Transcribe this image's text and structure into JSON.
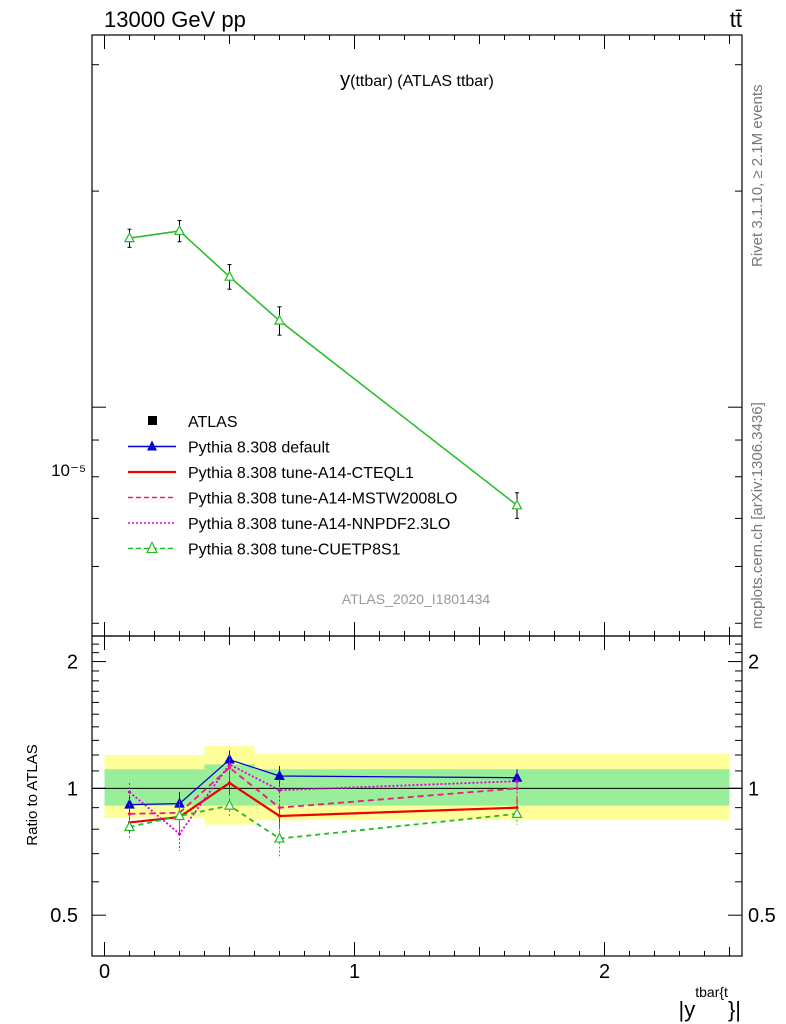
{
  "header": {
    "left": "13000 GeV pp",
    "right": "tt̄"
  },
  "side_text": {
    "rivet": "Rivet 3.1.10, ≥ 2.1M events",
    "mcplots": "mcplots.cern.ch [arXiv:1306.3436]"
  },
  "chart_data": [
    {
      "type": "line",
      "title": "y(ttbar) (ATLAS ttbar)",
      "title_main": "y",
      "title_rest": "(ttbar) (ATLAS ttbar)",
      "watermark": "ATLAS_2020_I1801434",
      "yscale": "log",
      "ylim": [
        4.8e-06,
        3.3e-05
      ],
      "xlim": [
        -0.05,
        2.55
      ],
      "y_tick_label": "10⁻⁵",
      "legend": {
        "placement": "bottom-left",
        "entries": [
          {
            "label": "ATLAS",
            "color": "#000000",
            "style": "square"
          },
          {
            "label": "Pythia 8.308 default",
            "color": "#0000cc",
            "style": "solid-triangle"
          },
          {
            "label": "Pythia 8.308 tune-A14-CTEQL1",
            "color": "#ee0000",
            "style": "solid"
          },
          {
            "label": "Pythia 8.308 tune-A14-MSTW2008LO",
            "color": "#ee1a7a",
            "style": "dashed"
          },
          {
            "label": "Pythia 8.308 tune-A14-NNPDF2.3LO",
            "color": "#dd00dd",
            "style": "dotted"
          },
          {
            "label": "Pythia 8.308 tune-CUETP8S1",
            "color": "#22bb22",
            "style": "dashed-open-triangle"
          }
        ]
      },
      "series": [
        {
          "name": "Pythia 8.308 tune-CUETP8S1",
          "color": "#22bb22",
          "x": [
            0.1,
            0.3,
            0.5,
            0.7,
            1.65
          ],
          "y": [
            1.72e-05,
            1.76e-05,
            1.52e-05,
            1.32e-05,
            7.3e-06
          ],
          "yerr": [
            5e-07,
            6e-07,
            6e-07,
            6e-07,
            3e-07
          ]
        }
      ]
    },
    {
      "type": "line",
      "ylabel": "Ratio to ATLAS",
      "xlabel": "|y^{tbar{t}}|",
      "xlabel_base": "|y",
      "xlabel_sup": "tbar{t",
      "xlabel_tail": "}|",
      "ylim": [
        0.4,
        2.3
      ],
      "xlim": [
        -0.05,
        2.55
      ],
      "y_ticks": [
        0.5,
        1,
        2
      ],
      "y_tick_labels": [
        "0.5",
        "1",
        "2"
      ],
      "x_ticks": [
        0,
        1,
        2
      ],
      "x_tick_labels": [
        "0",
        "1",
        "2"
      ],
      "bands": {
        "edges": [
          0,
          0.2,
          0.4,
          0.6,
          1.0,
          2.5
        ],
        "green": [
          [
            0.91,
            1.11
          ],
          [
            0.91,
            1.11
          ],
          [
            0.91,
            1.14
          ],
          [
            0.91,
            1.11
          ],
          [
            0.91,
            1.11
          ]
        ],
        "yellow": [
          [
            0.85,
            1.2
          ],
          [
            0.85,
            1.2
          ],
          [
            0.82,
            1.26
          ],
          [
            0.84,
            1.21
          ],
          [
            0.84,
            1.21
          ]
        ],
        "green_color": "#99ee99",
        "yellow_color": "#ffff99"
      },
      "series": [
        {
          "name": "Pythia 8.308 default",
          "color": "#0000cc",
          "x": [
            0.1,
            0.3,
            0.5,
            0.7,
            1.65
          ],
          "y": [
            0.915,
            0.92,
            1.17,
            1.07,
            1.06
          ],
          "yerr": [
            0.05,
            0.06,
            0.06,
            0.06,
            0.05
          ]
        },
        {
          "name": "Pythia 8.308 tune-A14-CTEQL1",
          "color": "#ee0000",
          "x": [
            0.1,
            0.3,
            0.5,
            0.7,
            1.65
          ],
          "y": [
            0.83,
            0.855,
            1.03,
            0.86,
            0.9
          ],
          "yerr": [
            0.05,
            0.06,
            0.06,
            0.06,
            0.05
          ]
        },
        {
          "name": "Pythia 8.308 tune-A14-MSTW2008LO",
          "color": "#ee1a7a",
          "x": [
            0.1,
            0.3,
            0.5,
            0.7,
            1.65
          ],
          "y": [
            0.87,
            0.875,
            1.12,
            0.9,
            1.0
          ],
          "yerr": [
            0.05,
            0.06,
            0.06,
            0.06,
            0.05
          ]
        },
        {
          "name": "Pythia 8.308 tune-A14-NNPDF2.3LO",
          "color": "#dd00dd",
          "x": [
            0.1,
            0.3,
            0.5,
            0.7,
            1.65
          ],
          "y": [
            0.98,
            0.78,
            1.14,
            0.99,
            1.04
          ],
          "yerr": [
            0.05,
            0.07,
            0.06,
            0.06,
            0.05
          ]
        },
        {
          "name": "Pythia 8.308 tune-CUETP8S1",
          "color": "#22bb22",
          "x": [
            0.1,
            0.3,
            0.5,
            0.7,
            1.65
          ],
          "y": [
            0.81,
            0.86,
            0.91,
            0.76,
            0.87
          ],
          "yerr": [
            0.05,
            0.06,
            0.06,
            0.07,
            0.05
          ]
        }
      ]
    }
  ]
}
